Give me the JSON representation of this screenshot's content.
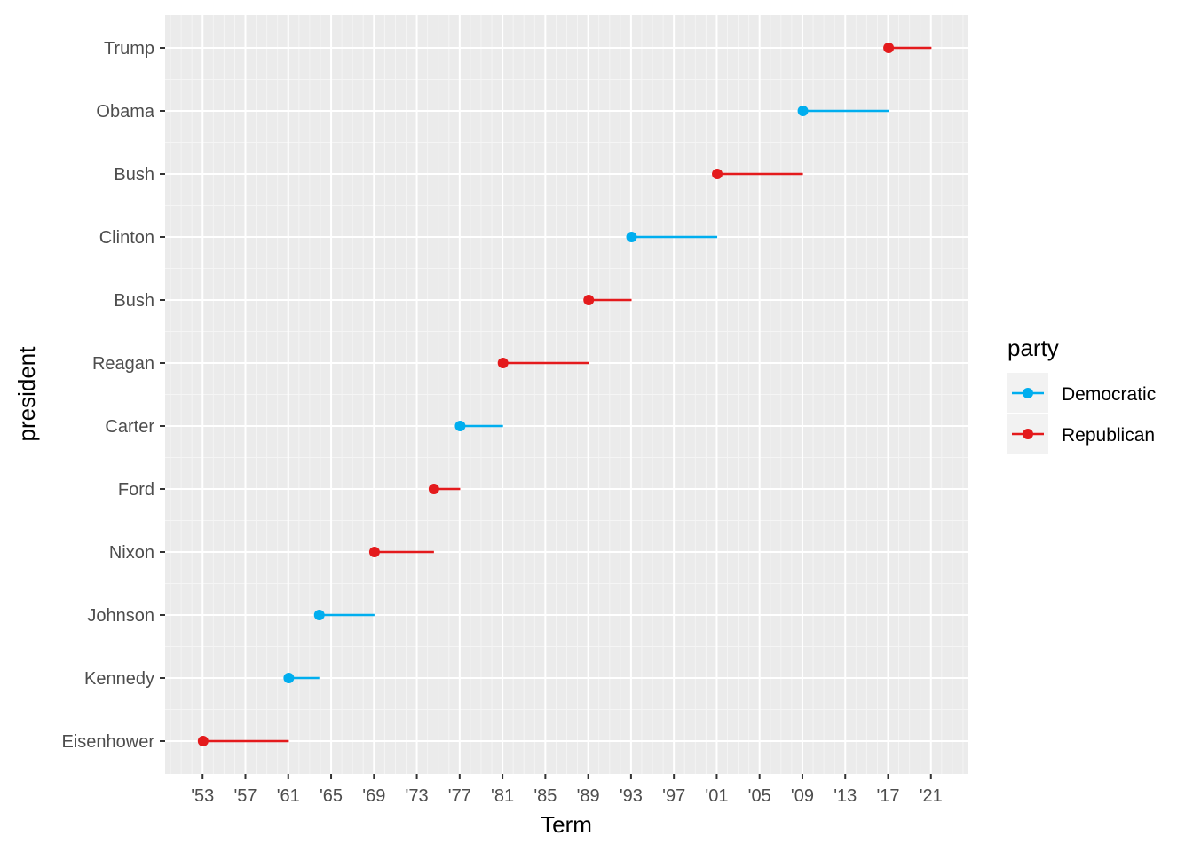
{
  "chart_data": {
    "type": "line",
    "xlabel": "Term",
    "ylabel": "president",
    "xlim": [
      1949.5,
      2024.5
    ],
    "x_ticks": [
      {
        "value": 1953,
        "label": "'53"
      },
      {
        "value": 1957,
        "label": "'57"
      },
      {
        "value": 1961,
        "label": "'61"
      },
      {
        "value": 1965,
        "label": "'65"
      },
      {
        "value": 1969,
        "label": "'69"
      },
      {
        "value": 1973,
        "label": "'73"
      },
      {
        "value": 1977,
        "label": "'77"
      },
      {
        "value": 1981,
        "label": "'81"
      },
      {
        "value": 1985,
        "label": "'85"
      },
      {
        "value": 1989,
        "label": "'89"
      },
      {
        "value": 1993,
        "label": "'93"
      },
      {
        "value": 1997,
        "label": "'97"
      },
      {
        "value": 2001,
        "label": "'01"
      },
      {
        "value": 2005,
        "label": "'05"
      },
      {
        "value": 2009,
        "label": "'09"
      },
      {
        "value": 2013,
        "label": "'13"
      },
      {
        "value": 2017,
        "label": "'17"
      },
      {
        "value": 2021,
        "label": "'21"
      }
    ],
    "grid": true,
    "legend": {
      "title": "party",
      "position": "right",
      "entries": [
        {
          "name": "Democratic",
          "color": "#00aeef"
        },
        {
          "name": "Republican",
          "color": "#e41a1c"
        }
      ]
    },
    "presidents": [
      {
        "name": "Eisenhower",
        "start": 1953.05,
        "end": 1961.05,
        "party": "Republican"
      },
      {
        "name": "Kennedy",
        "start": 1961.05,
        "end": 1963.9,
        "party": "Democratic"
      },
      {
        "name": "Johnson",
        "start": 1963.9,
        "end": 1969.05,
        "party": "Democratic"
      },
      {
        "name": "Nixon",
        "start": 1969.05,
        "end": 1974.6,
        "party": "Republican"
      },
      {
        "name": "Ford",
        "start": 1974.6,
        "end": 1977.05,
        "party": "Republican"
      },
      {
        "name": "Carter",
        "start": 1977.05,
        "end": 1981.05,
        "party": "Democratic"
      },
      {
        "name": "Reagan",
        "start": 1981.05,
        "end": 1989.05,
        "party": "Republican"
      },
      {
        "name": "Bush",
        "start": 1989.05,
        "end": 1993.05,
        "party": "Republican"
      },
      {
        "name": "Clinton",
        "start": 1993.05,
        "end": 2001.05,
        "party": "Democratic"
      },
      {
        "name": "Bush",
        "start": 2001.05,
        "end": 2009.05,
        "party": "Republican"
      },
      {
        "name": "Obama",
        "start": 2009.05,
        "end": 2017.05,
        "party": "Democratic"
      },
      {
        "name": "Trump",
        "start": 2017.05,
        "end": 2021.05,
        "party": "Republican"
      }
    ]
  }
}
